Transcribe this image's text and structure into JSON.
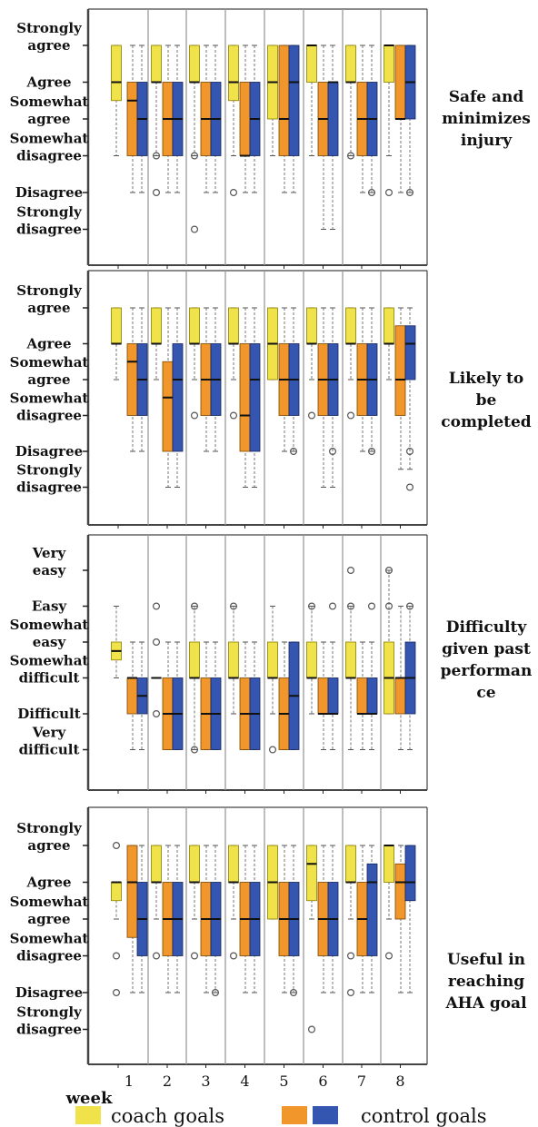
{
  "colors": {
    "coach": "#F0E24A",
    "control_orange": "#F0962A",
    "control_blue": "#3556B0",
    "frame": "#444444",
    "divider": "#9a9a9a"
  },
  "legend": {
    "week_label": "week",
    "coach_label": "coach goals",
    "control_label": "control goals"
  },
  "chart_data": [
    {
      "type": "boxplot",
      "title": "Safe and minimizes injury",
      "title_lines": [
        "Safe and",
        "minimizes",
        "injury"
      ],
      "scale": [
        {
          "level": 6,
          "lines": [
            "Strongly",
            "agree"
          ]
        },
        {
          "level": 5,
          "lines": [
            "Agree"
          ]
        },
        {
          "level": 4,
          "lines": [
            "Somewhat",
            "agree"
          ]
        },
        {
          "level": 3,
          "lines": [
            "Somewhat",
            "disagree"
          ]
        },
        {
          "level": 2,
          "lines": [
            "Disagree"
          ]
        },
        {
          "level": 1,
          "lines": [
            "Strongly",
            "disagree"
          ]
        }
      ],
      "ylim": [
        0,
        7
      ],
      "series": [
        {
          "name": "coach goals",
          "boxes": [
            {
              "week": 1,
              "q1": 4.5,
              "median": 5,
              "q3": 6,
              "wlo": 3,
              "whi": 6
            },
            {
              "week": 2,
              "q1": 5,
              "median": 5,
              "q3": 6,
              "wlo": 3,
              "whi": 6,
              "outliers": [
                3,
                2
              ]
            },
            {
              "week": 3,
              "q1": 5,
              "median": 5,
              "q3": 6,
              "wlo": 3,
              "whi": 6,
              "outliers": [
                3,
                1
              ]
            },
            {
              "week": 4,
              "q1": 4.5,
              "median": 5,
              "q3": 6,
              "wlo": 3,
              "whi": 6,
              "outliers": [
                2
              ]
            },
            {
              "week": 5,
              "q1": 4,
              "median": 5,
              "q3": 6,
              "wlo": 3,
              "whi": 6
            },
            {
              "week": 6,
              "q1": 5,
              "median": 6,
              "q3": 6,
              "wlo": 3,
              "whi": 6
            },
            {
              "week": 7,
              "q1": 5,
              "median": 5,
              "q3": 6,
              "wlo": 3,
              "whi": 6,
              "outliers": [
                3
              ]
            },
            {
              "week": 8,
              "q1": 5,
              "median": 6,
              "q3": 6,
              "wlo": 3,
              "whi": 6,
              "outliers": [
                2
              ]
            }
          ]
        },
        {
          "name": "control goals",
          "boxes": [
            {
              "week": 1,
              "q1": 3,
              "median": 4,
              "q3": 5,
              "wlo": 2,
              "whi": 6,
              "omed": 4.5,
              "split": 3.5
            },
            {
              "week": 2,
              "q1": 3,
              "median": 4,
              "q3": 5,
              "wlo": 2,
              "whi": 6
            },
            {
              "week": 3,
              "q1": 3,
              "median": 4,
              "q3": 5,
              "wlo": 2,
              "whi": 6
            },
            {
              "week": 4,
              "q1": 3,
              "median": 4,
              "q3": 5,
              "wlo": 2,
              "whi": 6,
              "omed": 3
            },
            {
              "week": 5,
              "q1": 3,
              "median": 4,
              "q3": 6,
              "wlo": 2,
              "whi": 6,
              "bmed": 5
            },
            {
              "week": 6,
              "q1": 3,
              "median": 4,
              "q3": 5,
              "wlo": 1,
              "whi": 6,
              "bmed": 5
            },
            {
              "week": 7,
              "q1": 3,
              "median": 4,
              "q3": 5,
              "wlo": 2,
              "whi": 6,
              "outliers": [
                2
              ]
            },
            {
              "week": 8,
              "q1": 4,
              "median": 5,
              "q3": 6,
              "wlo": 2,
              "whi": 6,
              "omed": 4,
              "outliers": [
                2
              ]
            }
          ]
        }
      ]
    },
    {
      "type": "boxplot",
      "title": "Likely to be completed",
      "title_lines": [
        "Likely to",
        "be",
        "completed"
      ],
      "scale": [
        {
          "level": 6,
          "lines": [
            "Strongly",
            "agree"
          ]
        },
        {
          "level": 5,
          "lines": [
            "Agree"
          ]
        },
        {
          "level": 4,
          "lines": [
            "Somewhat",
            "agree"
          ]
        },
        {
          "level": 3,
          "lines": [
            "Somewhat",
            "disagree"
          ]
        },
        {
          "level": 2,
          "lines": [
            "Disagree"
          ]
        },
        {
          "level": 1,
          "lines": [
            "Strongly",
            "disagree"
          ]
        }
      ],
      "ylim": [
        0,
        7
      ],
      "series": [
        {
          "name": "coach goals",
          "boxes": [
            {
              "week": 1,
              "q1": 5,
              "median": 5,
              "q3": 6,
              "wlo": 4,
              "whi": 6
            },
            {
              "week": 2,
              "q1": 5,
              "median": 5,
              "q3": 6,
              "wlo": 4,
              "whi": 6
            },
            {
              "week": 3,
              "q1": 5,
              "median": 5,
              "q3": 6,
              "wlo": 4,
              "whi": 6,
              "outliers": [
                3
              ]
            },
            {
              "week": 4,
              "q1": 5,
              "median": 5,
              "q3": 6,
              "wlo": 4,
              "whi": 6,
              "outliers": [
                3
              ]
            },
            {
              "week": 5,
              "q1": 4,
              "median": 5,
              "q3": 6,
              "wlo": 4,
              "whi": 6
            },
            {
              "week": 6,
              "q1": 5,
              "median": 5,
              "q3": 6,
              "wlo": 4,
              "whi": 6,
              "outliers": [
                3
              ]
            },
            {
              "week": 7,
              "q1": 5,
              "median": 5,
              "q3": 6,
              "wlo": 4,
              "whi": 6,
              "outliers": [
                3
              ]
            },
            {
              "week": 8,
              "q1": 5,
              "median": 5,
              "q3": 6,
              "wlo": 4,
              "whi": 6
            }
          ]
        },
        {
          "name": "control goals",
          "boxes": [
            {
              "week": 1,
              "q1": 3,
              "median": 4,
              "q3": 5,
              "wlo": 2,
              "whi": 6,
              "omed": 4.5
            },
            {
              "week": 2,
              "q1": 2,
              "median": 4,
              "q3": 5,
              "wlo": 1,
              "whi": 6,
              "oq3": 4.5,
              "omed": 3.5,
              "oq1": 2
            },
            {
              "week": 3,
              "q1": 3,
              "median": 4,
              "q3": 5,
              "wlo": 2,
              "whi": 6
            },
            {
              "week": 4,
              "q1": 2,
              "median": 4,
              "q3": 5,
              "wlo": 1,
              "whi": 6,
              "oq1": 2,
              "omed": 3
            },
            {
              "week": 5,
              "q1": 3,
              "median": 4,
              "q3": 5,
              "wlo": 2,
              "whi": 6,
              "outliers": [
                2
              ]
            },
            {
              "week": 6,
              "q1": 3,
              "median": 4,
              "q3": 5,
              "wlo": 1,
              "whi": 6,
              "outliers": [
                2
              ]
            },
            {
              "week": 7,
              "q1": 3,
              "median": 4,
              "q3": 5,
              "wlo": 2,
              "whi": 6,
              "outliers": [
                2
              ]
            },
            {
              "week": 8,
              "q1": 4,
              "median": 5,
              "q3": 5.5,
              "wlo": 1.5,
              "whi": 6,
              "oq1": 3,
              "omed": 4,
              "bq3": 5.5,
              "outliers": [
                2,
                1
              ]
            }
          ]
        }
      ]
    },
    {
      "type": "boxplot",
      "title": "Difficulty given past performance",
      "title_lines": [
        "Difficulty",
        "given past",
        "performan",
        "ce"
      ],
      "scale": [
        {
          "level": 6,
          "lines": [
            "Very",
            "easy"
          ]
        },
        {
          "level": 5,
          "lines": [
            "Easy"
          ]
        },
        {
          "level": 4,
          "lines": [
            "Somewhat",
            "easy"
          ]
        },
        {
          "level": 3,
          "lines": [
            "Somewhat",
            "difficult"
          ]
        },
        {
          "level": 2,
          "lines": [
            "Difficult"
          ]
        },
        {
          "level": 1,
          "lines": [
            "Very",
            "difficult"
          ]
        }
      ],
      "ylim": [
        0,
        7
      ],
      "series": [
        {
          "name": "coach goals",
          "boxes": [
            {
              "week": 1,
              "q1": 3.5,
              "median": 3.75,
              "q3": 4,
              "wlo": 3,
              "whi": 5
            },
            {
              "week": 2,
              "q1": 3,
              "median": 3,
              "q3": 3,
              "wlo": 3,
              "whi": 3,
              "outliers": [
                5,
                4,
                2
              ]
            },
            {
              "week": 3,
              "q1": 3,
              "median": 3,
              "q3": 4,
              "wlo": 1,
              "whi": 5,
              "outliers": [
                5,
                1
              ]
            },
            {
              "week": 4,
              "q1": 3,
              "median": 3,
              "q3": 4,
              "wlo": 2,
              "whi": 5,
              "outliers": [
                5
              ]
            },
            {
              "week": 5,
              "q1": 3,
              "median": 3,
              "q3": 4,
              "wlo": 2,
              "whi": 5,
              "outliers": [
                1
              ]
            },
            {
              "week": 6,
              "q1": 3,
              "median": 3,
              "q3": 4,
              "wlo": 2,
              "whi": 5,
              "outliers": [
                5
              ]
            },
            {
              "week": 7,
              "q1": 3,
              "median": 3,
              "q3": 4,
              "wlo": 1,
              "whi": 5,
              "outliers": [
                6,
                5
              ]
            },
            {
              "week": 8,
              "q1": 2,
              "median": 3,
              "q3": 4,
              "wlo": 2,
              "whi": 6,
              "outliers": [
                6,
                5
              ]
            }
          ]
        },
        {
          "name": "control goals",
          "boxes": [
            {
              "week": 1,
              "q1": 2,
              "median": 2.5,
              "q3": 3,
              "wlo": 1,
              "whi": 4,
              "omed": 3
            },
            {
              "week": 2,
              "q1": 1,
              "median": 2,
              "q3": 3,
              "wlo": 1,
              "whi": 4
            },
            {
              "week": 3,
              "q1": 1,
              "median": 2,
              "q3": 3,
              "wlo": 1,
              "whi": 4
            },
            {
              "week": 4,
              "q1": 1,
              "median": 2,
              "q3": 3,
              "wlo": 1,
              "whi": 4
            },
            {
              "week": 5,
              "q1": 1,
              "median": 2,
              "q3": 4,
              "wlo": 1,
              "whi": 4,
              "oq3": 3,
              "omed": 2,
              "bmed": 2.5
            },
            {
              "week": 6,
              "q1": 2,
              "median": 2,
              "q3": 3,
              "wlo": 1,
              "whi": 4,
              "outliers": [
                5
              ]
            },
            {
              "week": 7,
              "q1": 2,
              "median": 2,
              "q3": 3,
              "wlo": 1,
              "whi": 4,
              "outliers": [
                5
              ]
            },
            {
              "week": 8,
              "q1": 2,
              "median": 3,
              "q3": 4,
              "wlo": 1,
              "whi": 5,
              "oq3": 3,
              "omed": 3,
              "outliers": [
                5
              ]
            }
          ]
        }
      ]
    },
    {
      "type": "boxplot",
      "title": "Useful in reaching AHA goal",
      "title_lines": [
        "Useful in",
        "reaching",
        "AHA goal"
      ],
      "scale": [
        {
          "level": 6,
          "lines": [
            "Strongly",
            "agree"
          ]
        },
        {
          "level": 5,
          "lines": [
            "Agree"
          ]
        },
        {
          "level": 4,
          "lines": [
            "Somewhat",
            "agree"
          ]
        },
        {
          "level": 3,
          "lines": [
            "Somewhat",
            "disagree"
          ]
        },
        {
          "level": 2,
          "lines": [
            "Disagree"
          ]
        },
        {
          "level": 1,
          "lines": [
            "Strongly",
            "disagree"
          ]
        }
      ],
      "ylim": [
        0,
        7
      ],
      "series": [
        {
          "name": "coach goals",
          "boxes": [
            {
              "week": 1,
              "q1": 4.5,
              "median": 5,
              "q3": 5,
              "wlo": 4,
              "whi": 5,
              "outliers": [
                6,
                3,
                2
              ]
            },
            {
              "week": 2,
              "q1": 5,
              "median": 5,
              "q3": 6,
              "wlo": 4,
              "whi": 6,
              "outliers": [
                3
              ]
            },
            {
              "week": 3,
              "q1": 5,
              "median": 5,
              "q3": 6,
              "wlo": 4,
              "whi": 6,
              "outliers": [
                3
              ]
            },
            {
              "week": 4,
              "q1": 5,
              "median": 5,
              "q3": 6,
              "wlo": 4,
              "whi": 6,
              "outliers": [
                3
              ]
            },
            {
              "week": 5,
              "q1": 4,
              "median": 5,
              "q3": 6,
              "wlo": 4,
              "whi": 6
            },
            {
              "week": 6,
              "q1": 4.5,
              "median": 5.5,
              "q3": 6,
              "wlo": 4,
              "whi": 6,
              "outliers": [
                1
              ]
            },
            {
              "week": 7,
              "q1": 5,
              "median": 5,
              "q3": 6,
              "wlo": 4,
              "whi": 6,
              "outliers": [
                3,
                2
              ]
            },
            {
              "week": 8,
              "q1": 5,
              "median": 6,
              "q3": 6,
              "wlo": 4,
              "whi": 6,
              "outliers": [
                3
              ]
            }
          ]
        },
        {
          "name": "control goals",
          "boxes": [
            {
              "week": 1,
              "q1": 3,
              "median": 5,
              "q3": 6,
              "wlo": 2,
              "whi": 6,
              "oq1": 3.5,
              "omed": 5,
              "bq3": 5,
              "bmed": 4
            },
            {
              "week": 2,
              "q1": 3,
              "median": 4,
              "q3": 5,
              "wlo": 2,
              "whi": 6
            },
            {
              "week": 3,
              "q1": 3,
              "median": 4,
              "q3": 5,
              "wlo": 2,
              "whi": 6,
              "outliers": [
                2
              ]
            },
            {
              "week": 4,
              "q1": 3,
              "median": 4,
              "q3": 5,
              "wlo": 2,
              "whi": 6
            },
            {
              "week": 5,
              "q1": 3,
              "median": 4,
              "q3": 5,
              "wlo": 2,
              "whi": 6,
              "outliers": [
                2
              ]
            },
            {
              "week": 6,
              "q1": 3,
              "median": 4,
              "q3": 5,
              "wlo": 2,
              "whi": 6
            },
            {
              "week": 7,
              "q1": 3,
              "median": 4,
              "q3": 5.5,
              "wlo": 2,
              "whi": 6,
              "oq3": 5,
              "bmed": 5
            },
            {
              "week": 8,
              "q1": 4,
              "median": 5,
              "q3": 6,
              "wlo": 2,
              "whi": 6,
              "oq3": 5.5,
              "bq1": 4.5
            }
          ]
        }
      ]
    }
  ],
  "weeks": [
    "1",
    "2",
    "3",
    "4",
    "5",
    "6",
    "7",
    "8"
  ]
}
